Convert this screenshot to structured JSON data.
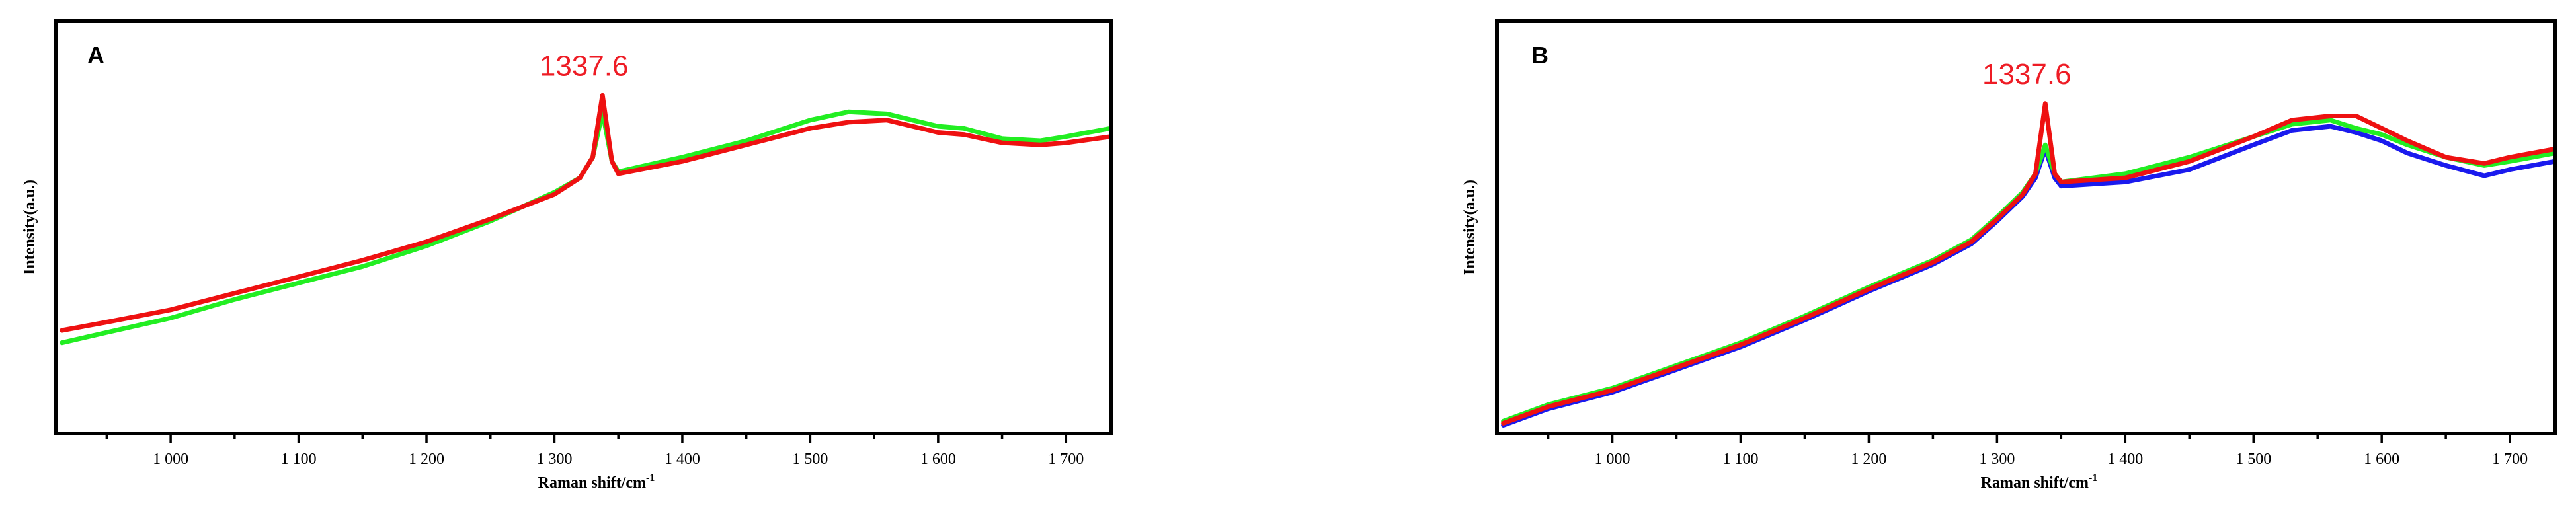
{
  "chart_data": [
    {
      "type": "line",
      "panel_label": "A",
      "xlabel": "Raman shift/cm",
      "xlabel_sup": "-1",
      "ylabel": "Intensity(a.u.)",
      "xlim": [
        910,
        1735
      ],
      "ylim": [
        0,
        100
      ],
      "x_ticks": [
        1000,
        1100,
        1200,
        1300,
        1400,
        1500,
        1600,
        1700
      ],
      "x_tick_labels": [
        "1 000",
        "1 100",
        "1 200",
        "1 300",
        "1 400",
        "1 500",
        "1 600",
        "1 700"
      ],
      "annotations": [
        {
          "text": "1337.6",
          "x": 1337.6
        }
      ],
      "colors": {
        "green": "#22ee22",
        "red": "#ee1111"
      },
      "series": [
        {
          "color": "#22ee22",
          "points": [
            [
              915,
              22
            ],
            [
              950,
              24.5
            ],
            [
              1000,
              28
            ],
            [
              1050,
              32.5
            ],
            [
              1100,
              36.5
            ],
            [
              1150,
              40.5
            ],
            [
              1200,
              45.5
            ],
            [
              1250,
              51.5
            ],
            [
              1300,
              58.5
            ],
            [
              1320,
              62
            ],
            [
              1330,
              67
            ],
            [
              1337.6,
              78
            ],
            [
              1345,
              66
            ],
            [
              1350,
              63.5
            ],
            [
              1400,
              67
            ],
            [
              1450,
              71
            ],
            [
              1500,
              76
            ],
            [
              1530,
              78
            ],
            [
              1560,
              77.5
            ],
            [
              1580,
              76
            ],
            [
              1600,
              74.5
            ],
            [
              1620,
              74
            ],
            [
              1650,
              71.5
            ],
            [
              1680,
              71
            ],
            [
              1700,
              72
            ],
            [
              1735,
              74
            ]
          ]
        },
        {
          "color": "#ee1111",
          "points": [
            [
              915,
              25
            ],
            [
              950,
              27
            ],
            [
              1000,
              30
            ],
            [
              1050,
              34
            ],
            [
              1100,
              38
            ],
            [
              1150,
              42
            ],
            [
              1200,
              46.5
            ],
            [
              1250,
              52
            ],
            [
              1300,
              58
            ],
            [
              1320,
              62
            ],
            [
              1330,
              67
            ],
            [
              1337.6,
              82
            ],
            [
              1345,
              66
            ],
            [
              1350,
              63
            ],
            [
              1400,
              66
            ],
            [
              1450,
              70
            ],
            [
              1500,
              74
            ],
            [
              1530,
              75.5
            ],
            [
              1560,
              76
            ],
            [
              1580,
              74.5
            ],
            [
              1600,
              73
            ],
            [
              1620,
              72.5
            ],
            [
              1650,
              70.5
            ],
            [
              1680,
              70
            ],
            [
              1700,
              70.5
            ],
            [
              1735,
              72
            ]
          ]
        }
      ]
    },
    {
      "type": "line",
      "panel_label": "B",
      "xlabel": "Raman shift/cm",
      "xlabel_sup": "-1",
      "ylabel": "Intensity(a.u.)",
      "xlim": [
        910,
        1735
      ],
      "ylim": [
        0,
        100
      ],
      "x_ticks": [
        1000,
        1100,
        1200,
        1300,
        1400,
        1500,
        1600,
        1700
      ],
      "x_tick_labels": [
        "1 000",
        "1 100",
        "1 200",
        "1 300",
        "1 400",
        "1 500",
        "1 600",
        "1 700"
      ],
      "annotations": [
        {
          "text": "1337.6",
          "x": 1337.6
        }
      ],
      "colors": {
        "blue": "#1a1aee",
        "green": "#22ee22",
        "red": "#ee1111"
      },
      "series": [
        {
          "color": "#1a1aee",
          "points": [
            [
              915,
              2
            ],
            [
              950,
              6
            ],
            [
              1000,
              10
            ],
            [
              1050,
              15.5
            ],
            [
              1100,
              21
            ],
            [
              1150,
              27.5
            ],
            [
              1200,
              34.5
            ],
            [
              1250,
              41
            ],
            [
              1280,
              46
            ],
            [
              1300,
              51.5
            ],
            [
              1320,
              57.5
            ],
            [
              1330,
              62
            ],
            [
              1337.6,
              69
            ],
            [
              1345,
              62
            ],
            [
              1350,
              60
            ],
            [
              1400,
              61
            ],
            [
              1450,
              64
            ],
            [
              1500,
              70
            ],
            [
              1530,
              73.5
            ],
            [
              1560,
              74.5
            ],
            [
              1580,
              73
            ],
            [
              1600,
              71
            ],
            [
              1620,
              68
            ],
            [
              1650,
              65
            ],
            [
              1680,
              62.5
            ],
            [
              1700,
              64
            ],
            [
              1735,
              66
            ]
          ]
        },
        {
          "color": "#22ee22",
          "points": [
            [
              915,
              3
            ],
            [
              950,
              7
            ],
            [
              1000,
              11
            ],
            [
              1050,
              16.5
            ],
            [
              1100,
              22
            ],
            [
              1150,
              28.5
            ],
            [
              1200,
              35.5
            ],
            [
              1250,
              42
            ],
            [
              1280,
              47
            ],
            [
              1300,
              52.5
            ],
            [
              1320,
              58.5
            ],
            [
              1330,
              63
            ],
            [
              1337.6,
              70
            ],
            [
              1345,
              63
            ],
            [
              1350,
              61
            ],
            [
              1400,
              63
            ],
            [
              1450,
              67
            ],
            [
              1500,
              72
            ],
            [
              1530,
              75
            ],
            [
              1560,
              76
            ],
            [
              1580,
              74
            ],
            [
              1600,
              72.5
            ],
            [
              1620,
              70
            ],
            [
              1650,
              67
            ],
            [
              1680,
              65
            ],
            [
              1700,
              66
            ],
            [
              1735,
              68
            ]
          ]
        },
        {
          "color": "#ee1111",
          "points": [
            [
              915,
              2.5
            ],
            [
              950,
              6.5
            ],
            [
              1000,
              10.5
            ],
            [
              1050,
              16
            ],
            [
              1100,
              21.5
            ],
            [
              1150,
              28
            ],
            [
              1200,
              35
            ],
            [
              1250,
              41.5
            ],
            [
              1280,
              46.5
            ],
            [
              1300,
              52
            ],
            [
              1320,
              58
            ],
            [
              1330,
              63
            ],
            [
              1337.6,
              80
            ],
            [
              1345,
              63
            ],
            [
              1350,
              61
            ],
            [
              1400,
              62
            ],
            [
              1450,
              66
            ],
            [
              1500,
              72
            ],
            [
              1530,
              76
            ],
            [
              1560,
              77
            ],
            [
              1580,
              77
            ],
            [
              1600,
              74
            ],
            [
              1620,
              71
            ],
            [
              1650,
              67
            ],
            [
              1680,
              65.5
            ],
            [
              1700,
              67
            ],
            [
              1735,
              69
            ]
          ]
        }
      ]
    }
  ]
}
